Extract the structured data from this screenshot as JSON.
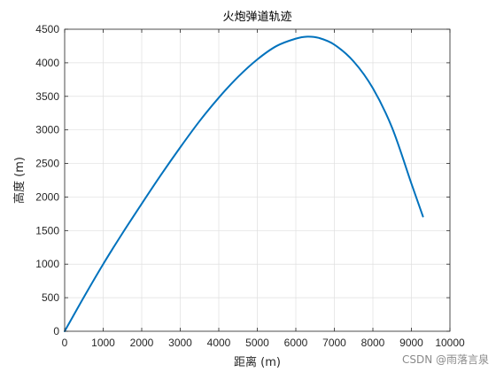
{
  "chart_data": {
    "type": "line",
    "title": "火炮弹道轨迹",
    "xlabel": "距离 (m)",
    "ylabel": "高度 (m)",
    "xlim": [
      0,
      10000
    ],
    "ylim": [
      0,
      4500
    ],
    "xticks": [
      0,
      1000,
      2000,
      3000,
      4000,
      5000,
      6000,
      7000,
      8000,
      9000,
      10000
    ],
    "yticks": [
      0,
      500,
      1000,
      1500,
      2000,
      2500,
      3000,
      3500,
      4000,
      4500
    ],
    "grid": true,
    "box": true,
    "series": [
      {
        "color": "#0072BD",
        "x": [
          0,
          500,
          1000,
          1500,
          2000,
          2500,
          3000,
          3500,
          4000,
          4500,
          5000,
          5500,
          6000,
          6300,
          6600,
          7000,
          7500,
          8000,
          8500,
          9000,
          9300
        ],
        "y": [
          0,
          510,
          1000,
          1460,
          1900,
          2330,
          2740,
          3130,
          3480,
          3790,
          4050,
          4250,
          4360,
          4390,
          4370,
          4270,
          4020,
          3620,
          3030,
          2200,
          1710
        ]
      }
    ]
  },
  "watermark": "CSDN @雨落言泉"
}
